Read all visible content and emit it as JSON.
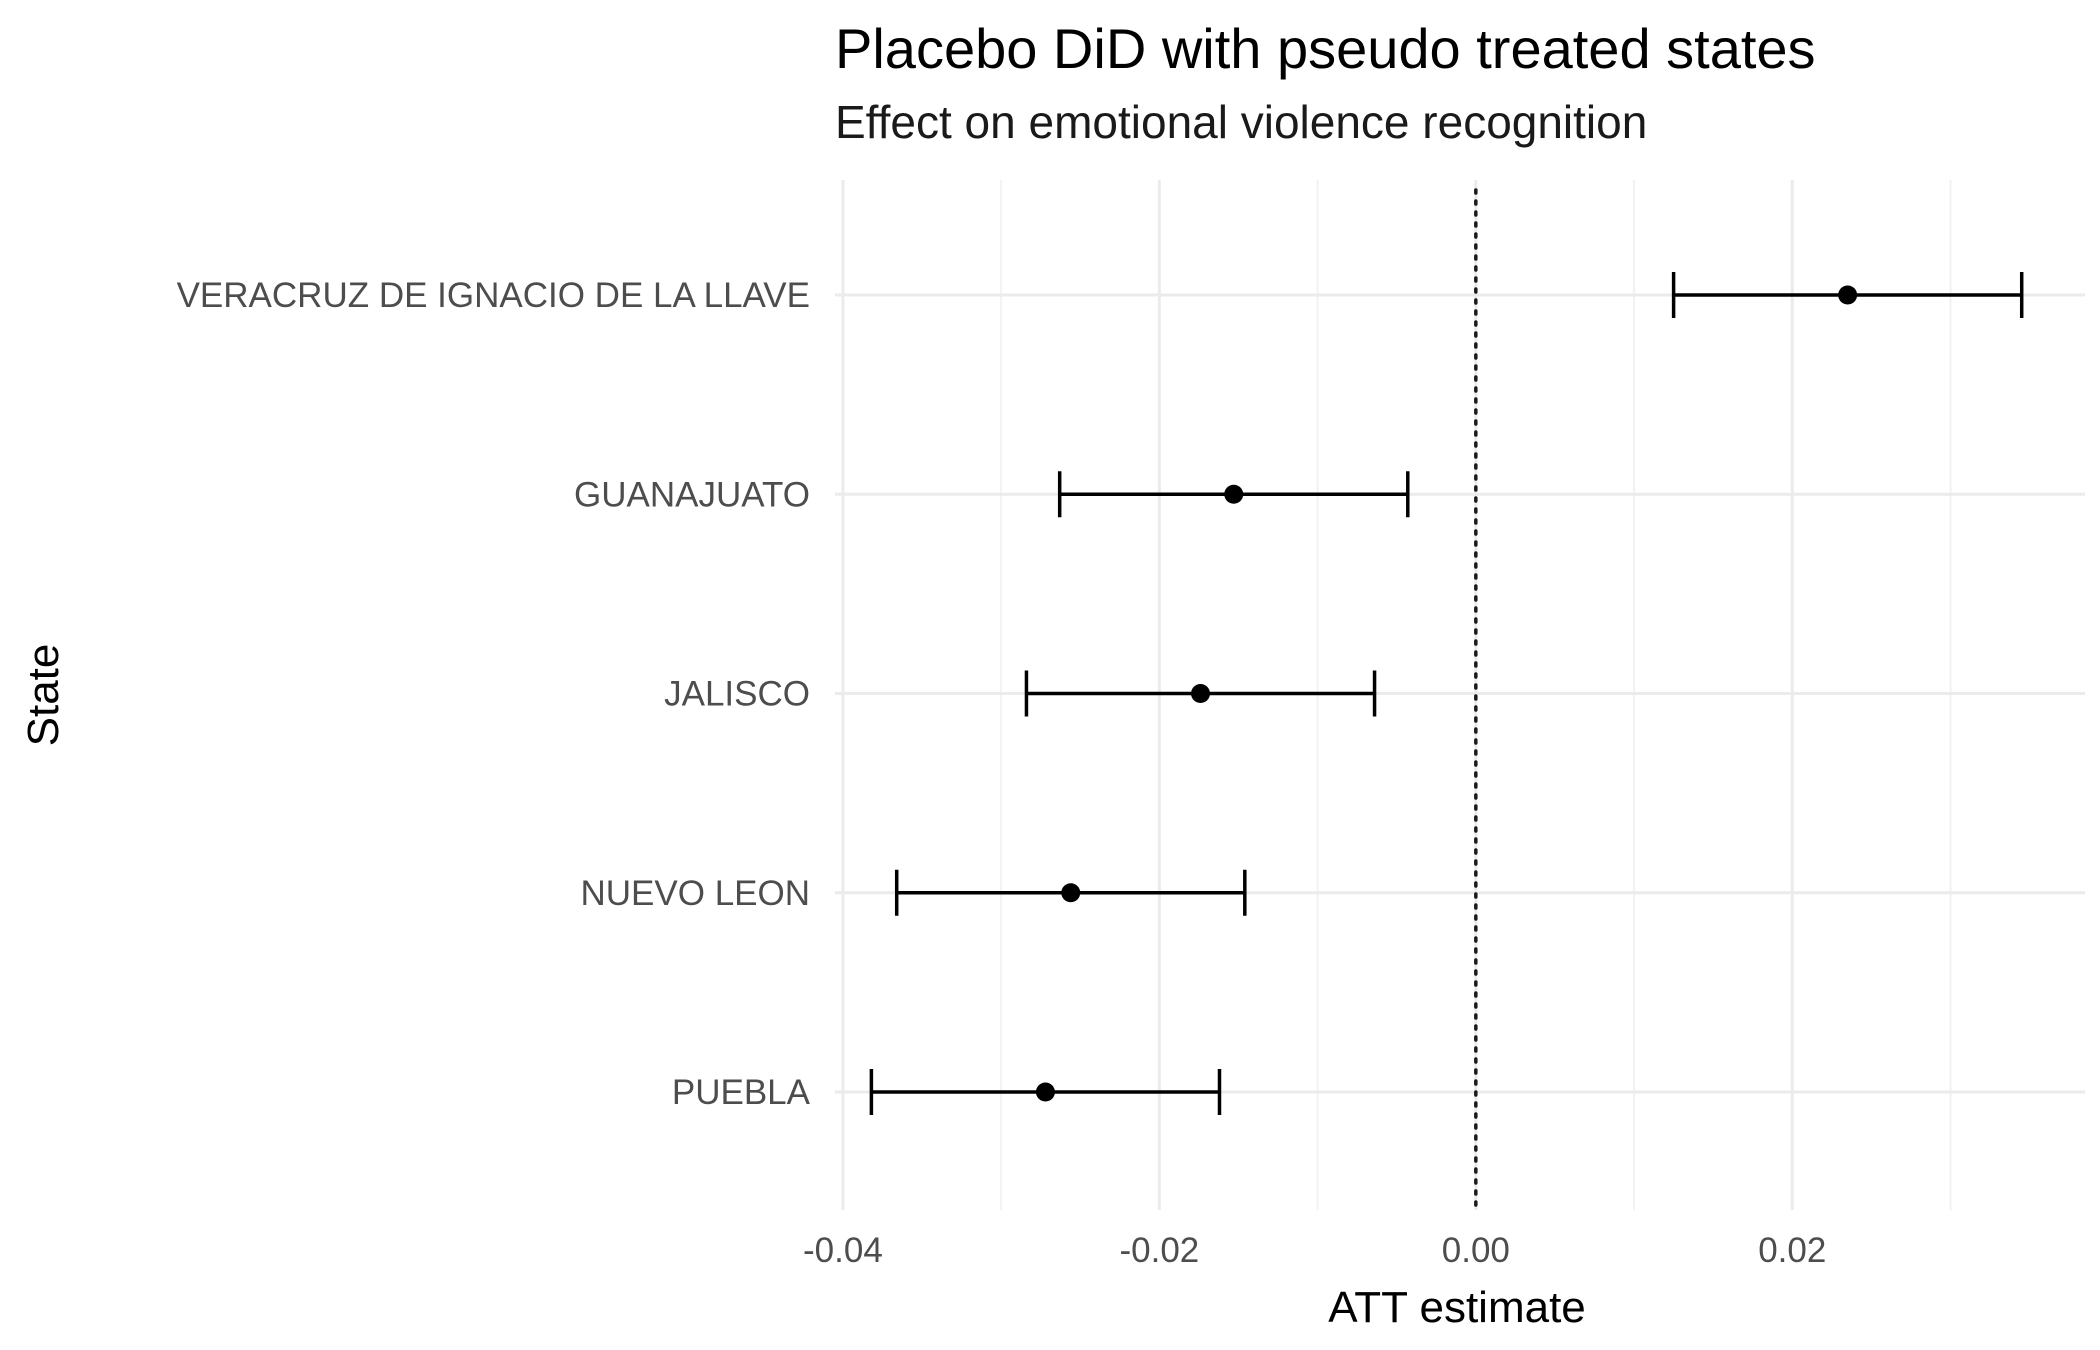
{
  "chart_data": {
    "type": "scatter",
    "title": "Placebo DiD with pseudo treated states",
    "subtitle": "Effect on emotional violence recognition",
    "xlabel": "ATT estimate",
    "ylabel": "State",
    "xlim": [
      -0.0405,
      0.0385
    ],
    "x_ticks": [
      -0.04,
      -0.02,
      0.0,
      0.02
    ],
    "x_tick_labels": [
      "-0.04",
      "-0.02",
      "0.00",
      "0.02"
    ],
    "reference_line": {
      "x": 0.0,
      "style": "dotted"
    },
    "grid": true,
    "categories": [
      "VERACRUZ DE IGNACIO DE LA LLAVE",
      "GUANAJUATO",
      "JALISCO",
      "NUEVO LEON",
      "PUEBLA"
    ],
    "series": [
      {
        "estimate": [
          0.0235,
          -0.0153,
          -0.0174,
          -0.0256,
          -0.0272
        ],
        "ci_low": [
          0.0125,
          -0.0263,
          -0.0284,
          -0.0366,
          -0.0382
        ],
        "ci_high": [
          0.0345,
          -0.0043,
          -0.0064,
          -0.0146,
          -0.0162
        ]
      }
    ],
    "colors": {
      "point": "#000000",
      "errorbar": "#000000",
      "grid_major": "#ebebeb",
      "grid_minor": "#f2f2f2",
      "reference_line": "#1a1a1a"
    }
  }
}
